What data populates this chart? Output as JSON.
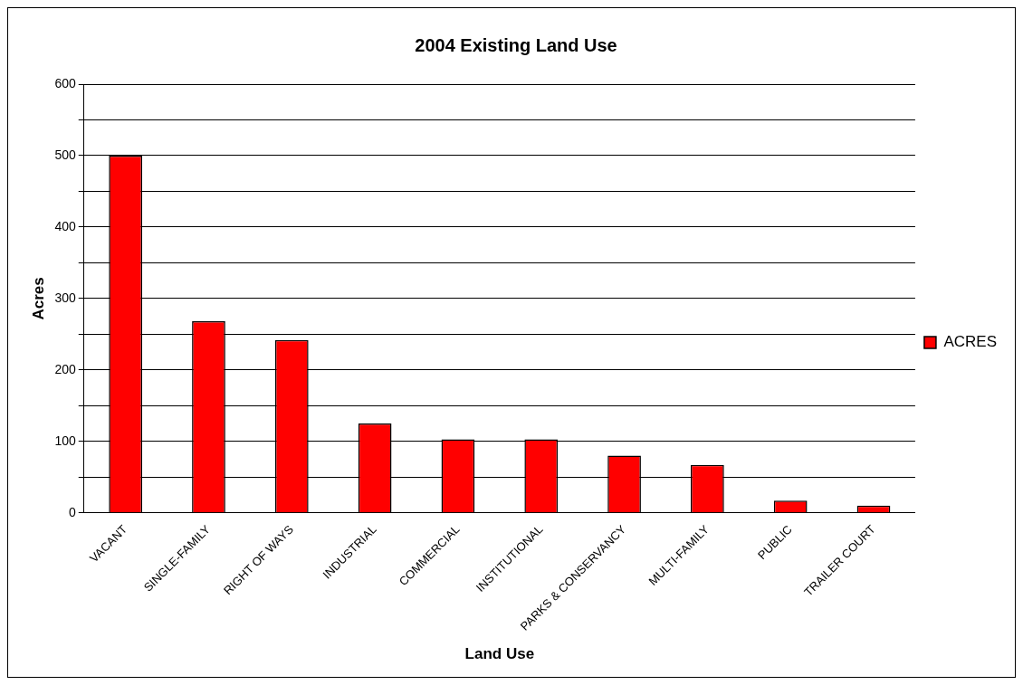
{
  "chart_data": {
    "type": "bar",
    "title": "2004 Existing Land Use",
    "xlabel": "Land Use",
    "ylabel": "Acres",
    "categories": [
      "VACANT",
      "SINGLE-FAMILY",
      "RIGHT OF WAYS",
      "INDUSTRIAL",
      "COMMERCIAL",
      "INSTITUTIONAL",
      "PARKS & CONSERVANCY",
      "MULTI-FAMILY",
      "PUBLIC",
      "TRAILER COURT"
    ],
    "series": [
      {
        "name": "ACRES",
        "color": "#ff0000",
        "values": [
          500,
          268,
          242,
          125,
          103,
          103,
          80,
          67,
          17,
          10
        ]
      }
    ],
    "ylim": [
      0,
      600
    ],
    "yticks": [
      0,
      {
        "value": 50,
        "label": null
      },
      100,
      {
        "value": 150,
        "label": null
      },
      200,
      {
        "value": 250,
        "label": null
      },
      300,
      {
        "value": 350,
        "label": null
      },
      400,
      {
        "value": 450,
        "label": null
      },
      500,
      {
        "value": 550,
        "label": null
      },
      600
    ],
    "grid": "y",
    "legend": "right"
  }
}
